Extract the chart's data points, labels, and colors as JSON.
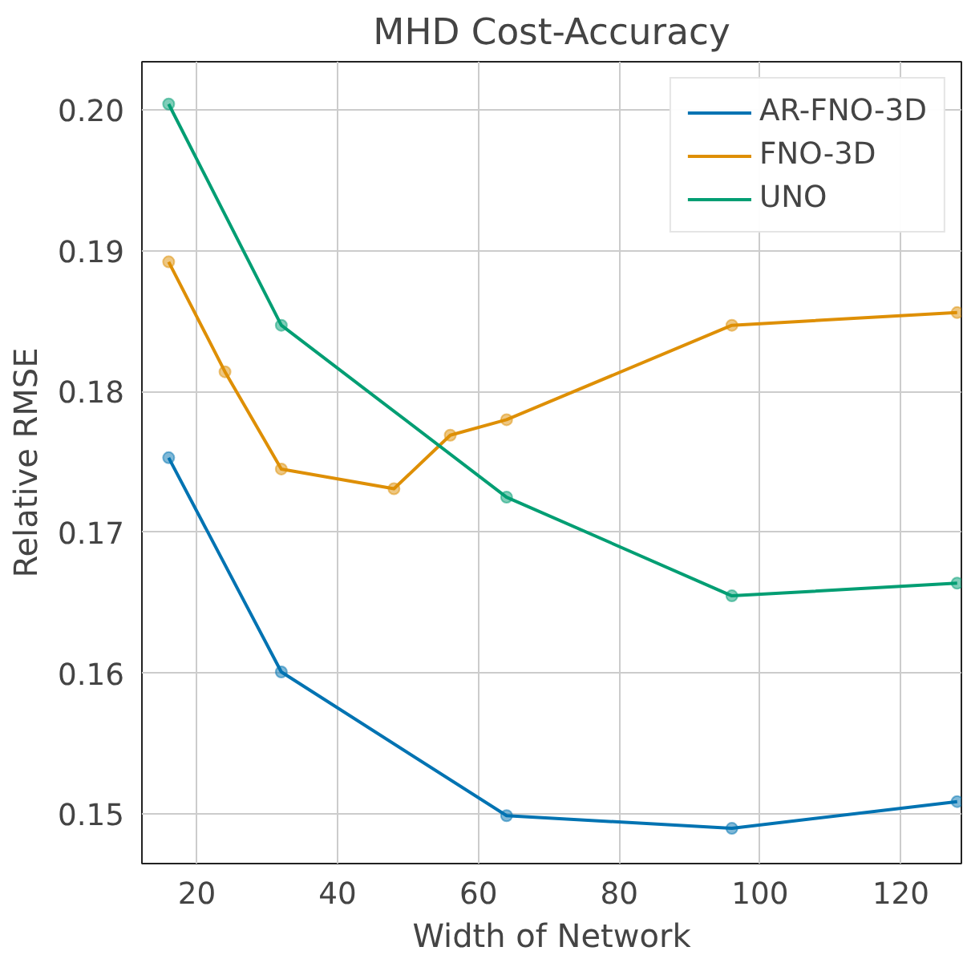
{
  "chart_data": {
    "type": "line",
    "title": "MHD Cost-Accuracy",
    "xlabel": "Width of Network",
    "ylabel": "Relative RMSE",
    "xlim": [
      12.2,
      128.6
    ],
    "ylim": [
      0.1465,
      0.2034
    ],
    "xticks": [
      20,
      40,
      60,
      80,
      100,
      120
    ],
    "yticks": [
      {
        "value": 0.15,
        "label": "0.15"
      },
      {
        "value": 0.16,
        "label": "0.16"
      },
      {
        "value": 0.17,
        "label": "0.17"
      },
      {
        "value": 0.18,
        "label": "0.18"
      },
      {
        "value": 0.19,
        "label": "0.19"
      },
      {
        "value": 0.2,
        "label": "0.20"
      }
    ],
    "grid": true,
    "legend": "top right",
    "marker": "circle",
    "line_style": "solid",
    "series": [
      {
        "name": "AR-FNO-3D",
        "color": "#0173b2",
        "x": [
          16,
          32,
          64,
          96,
          128
        ],
        "values": [
          0.1753,
          0.1601,
          0.1499,
          0.149,
          0.1509
        ]
      },
      {
        "name": "FNO-3D",
        "color": "#de8f05",
        "x": [
          16,
          24,
          32,
          48,
          56,
          64,
          96,
          128
        ],
        "values": [
          0.1892,
          0.1814,
          0.1745,
          0.1731,
          0.1769,
          0.178,
          0.1847,
          0.1856
        ]
      },
      {
        "name": "UNO",
        "color": "#029e73",
        "x": [
          16,
          32,
          64,
          96,
          128
        ],
        "values": [
          0.2004,
          0.1847,
          0.1725,
          0.1655,
          0.1664
        ]
      }
    ]
  }
}
